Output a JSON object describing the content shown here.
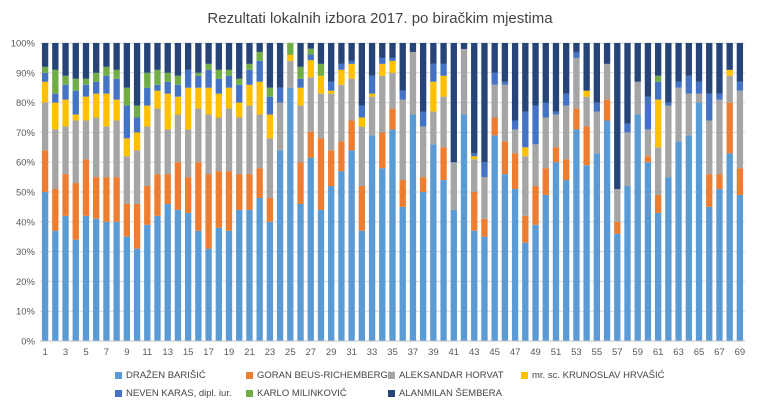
{
  "chart_data": {
    "type": "bar",
    "stacked": true,
    "percent_stacked": true,
    "title": "Rezultati lokalnih izbora 2017. po biračkim mjestima",
    "xlabel": "",
    "ylabel": "",
    "ylim": [
      0,
      100
    ],
    "y_ticks": [
      "0%",
      "10%",
      "20%",
      "30%",
      "40%",
      "50%",
      "60%",
      "70%",
      "80%",
      "90%",
      "100%"
    ],
    "x_tick_labels": [
      "1",
      "3",
      "5",
      "7",
      "9",
      "11",
      "13",
      "15",
      "17",
      "19",
      "21",
      "23",
      "25",
      "27",
      "29",
      "31",
      "33",
      "35",
      "37",
      "39",
      "41",
      "43",
      "45",
      "47",
      "49",
      "51",
      "53",
      "55",
      "57",
      "59",
      "61",
      "63",
      "65",
      "67",
      "69"
    ],
    "grid": true,
    "legend_position": "bottom",
    "categories": [
      "1",
      "2",
      "3",
      "4",
      "5",
      "6",
      "7",
      "8",
      "9",
      "10",
      "11",
      "12",
      "13",
      "14",
      "15",
      "16",
      "17",
      "18",
      "19",
      "20",
      "21",
      "22",
      "23",
      "24",
      "25",
      "26",
      "27",
      "28",
      "29",
      "30",
      "31",
      "32",
      "33",
      "34",
      "35",
      "36",
      "37",
      "38",
      "39",
      "40",
      "41",
      "42",
      "43",
      "44",
      "45",
      "46",
      "47",
      "48",
      "49",
      "50",
      "51",
      "52",
      "53",
      "54",
      "55",
      "56",
      "57",
      "58",
      "59",
      "60",
      "61",
      "62",
      "63",
      "64",
      "65",
      "66",
      "67",
      "68",
      "69"
    ],
    "series": [
      {
        "name": "DRAŽEN BARIŠIĆ",
        "color": "#5B9BD5",
        "values": [
          50,
          37,
          42,
          34,
          42,
          41,
          40,
          40,
          35,
          31,
          39,
          42,
          46,
          44,
          43,
          37,
          31,
          38,
          37,
          44,
          44,
          48,
          40,
          64,
          85,
          46,
          64,
          44,
          52,
          57,
          64,
          37,
          69,
          58,
          71,
          45,
          76,
          50,
          66,
          54,
          44,
          76,
          37,
          35,
          69,
          56,
          51,
          33,
          39,
          49,
          60,
          54,
          71,
          59,
          63,
          74,
          36,
          52,
          76,
          60,
          43,
          55,
          67,
          69,
          80,
          45,
          51,
          63,
          49
        ]
      },
      {
        "name": "GORAN BEUS-RICHEMBERGH",
        "color": "#ED7D31",
        "values": [
          14,
          14,
          14,
          19,
          19,
          14,
          15,
          15,
          11,
          15,
          13,
          14,
          10,
          16,
          12,
          23,
          25,
          19,
          20,
          12,
          12,
          10,
          8,
          0,
          0,
          14,
          9,
          24,
          12,
          10,
          10,
          15,
          0,
          12,
          7,
          9,
          0,
          5,
          0,
          11,
          0,
          0,
          13,
          6,
          6,
          11,
          12,
          9,
          13,
          9,
          5,
          7,
          7,
          13,
          0,
          7,
          4,
          0,
          0,
          2,
          6,
          0,
          0,
          0,
          0,
          11,
          5,
          17,
          9
        ]
      },
      {
        "name": "ALEKSANDAR HORVAT",
        "color": "#A5A5A5",
        "values": [
          16,
          20,
          16,
          21,
          13,
          20,
          17,
          19,
          16,
          18,
          20,
          22,
          15,
          16,
          16,
          18,
          20,
          18,
          21,
          19,
          23,
          18,
          20,
          16,
          9,
          19,
          19,
          15,
          19,
          19,
          14,
          20,
          13,
          19,
          12,
          27,
          21,
          17,
          11,
          17,
          16,
          22,
          11,
          14,
          11,
          19,
          8,
          20,
          14,
          17,
          11,
          18,
          17,
          10,
          14,
          12,
          11,
          18,
          11,
          9,
          16,
          24,
          18,
          14,
          3,
          18,
          25,
          9,
          26
        ]
      },
      {
        "name": "mr. sc. KRUNOSLAV HRVAŠIĆ",
        "color": "#FFC000",
        "values": [
          7,
          9,
          9,
          2,
          8,
          8,
          11,
          7,
          6,
          6,
          7,
          6,
          12,
          6,
          14,
          7,
          9,
          8,
          7,
          5,
          7,
          11,
          8,
          0,
          2,
          6,
          6,
          6,
          1,
          5,
          5,
          3,
          1,
          4,
          4,
          0,
          0,
          0,
          10,
          7,
          0,
          0,
          1,
          0,
          0,
          0,
          0,
          3,
          0,
          0,
          0,
          0,
          0,
          2,
          0,
          0,
          0,
          0,
          0,
          0,
          16,
          0,
          0,
          0,
          0,
          0,
          0,
          2,
          0
        ]
      },
      {
        "name": "NEVEN KARAS, dipl. iur.",
        "color": "#4472C4",
        "values": [
          3,
          3,
          5,
          8,
          4,
          4,
          6,
          7,
          11,
          5,
          6,
          2,
          4,
          4,
          6,
          4,
          6,
          5,
          4,
          6,
          5,
          7,
          6,
          5,
          0,
          3,
          2,
          0,
          3,
          2,
          1,
          4,
          6,
          2,
          1,
          3,
          0,
          5,
          6,
          4,
          0,
          0,
          1,
          5,
          4,
          1,
          3,
          12,
          13,
          5,
          1,
          4,
          2,
          0,
          3,
          0,
          0,
          3,
          0,
          11,
          6,
          1,
          2,
          6,
          4,
          9,
          2,
          0,
          3
        ]
      },
      {
        "name": "KARLO MILINKOVIĆ",
        "color": "#70AD47",
        "values": [
          2,
          8,
          3,
          4,
          2,
          3,
          3,
          3,
          6,
          4,
          5,
          5,
          3,
          3,
          0,
          1,
          2,
          3,
          2,
          2,
          2,
          3,
          3,
          0,
          4,
          4,
          2,
          4,
          0,
          0,
          0,
          0,
          0,
          0,
          0,
          0,
          0,
          0,
          0,
          0,
          0,
          0,
          0,
          0,
          0,
          0,
          0,
          0,
          0,
          0,
          0,
          0,
          0,
          0,
          0,
          0,
          0,
          0,
          0,
          0,
          2,
          0,
          0,
          0,
          0,
          0,
          0,
          0,
          0
        ]
      },
      {
        "name": "ALANMILAN ŠEMBERA",
        "color": "#264478",
        "values": [
          8,
          9,
          11,
          12,
          12,
          10,
          8,
          9,
          15,
          21,
          10,
          9,
          10,
          11,
          9,
          10,
          7,
          9,
          9,
          12,
          7,
          3,
          15,
          15,
          0,
          8,
          2,
          7,
          13,
          7,
          6,
          21,
          11,
          5,
          5,
          16,
          3,
          23,
          7,
          7,
          40,
          2,
          37,
          40,
          10,
          13,
          26,
          23,
          21,
          20,
          23,
          17,
          3,
          16,
          20,
          7,
          49,
          27,
          13,
          18,
          11,
          20,
          13,
          11,
          13,
          17,
          17,
          9,
          13
        ]
      }
    ]
  }
}
